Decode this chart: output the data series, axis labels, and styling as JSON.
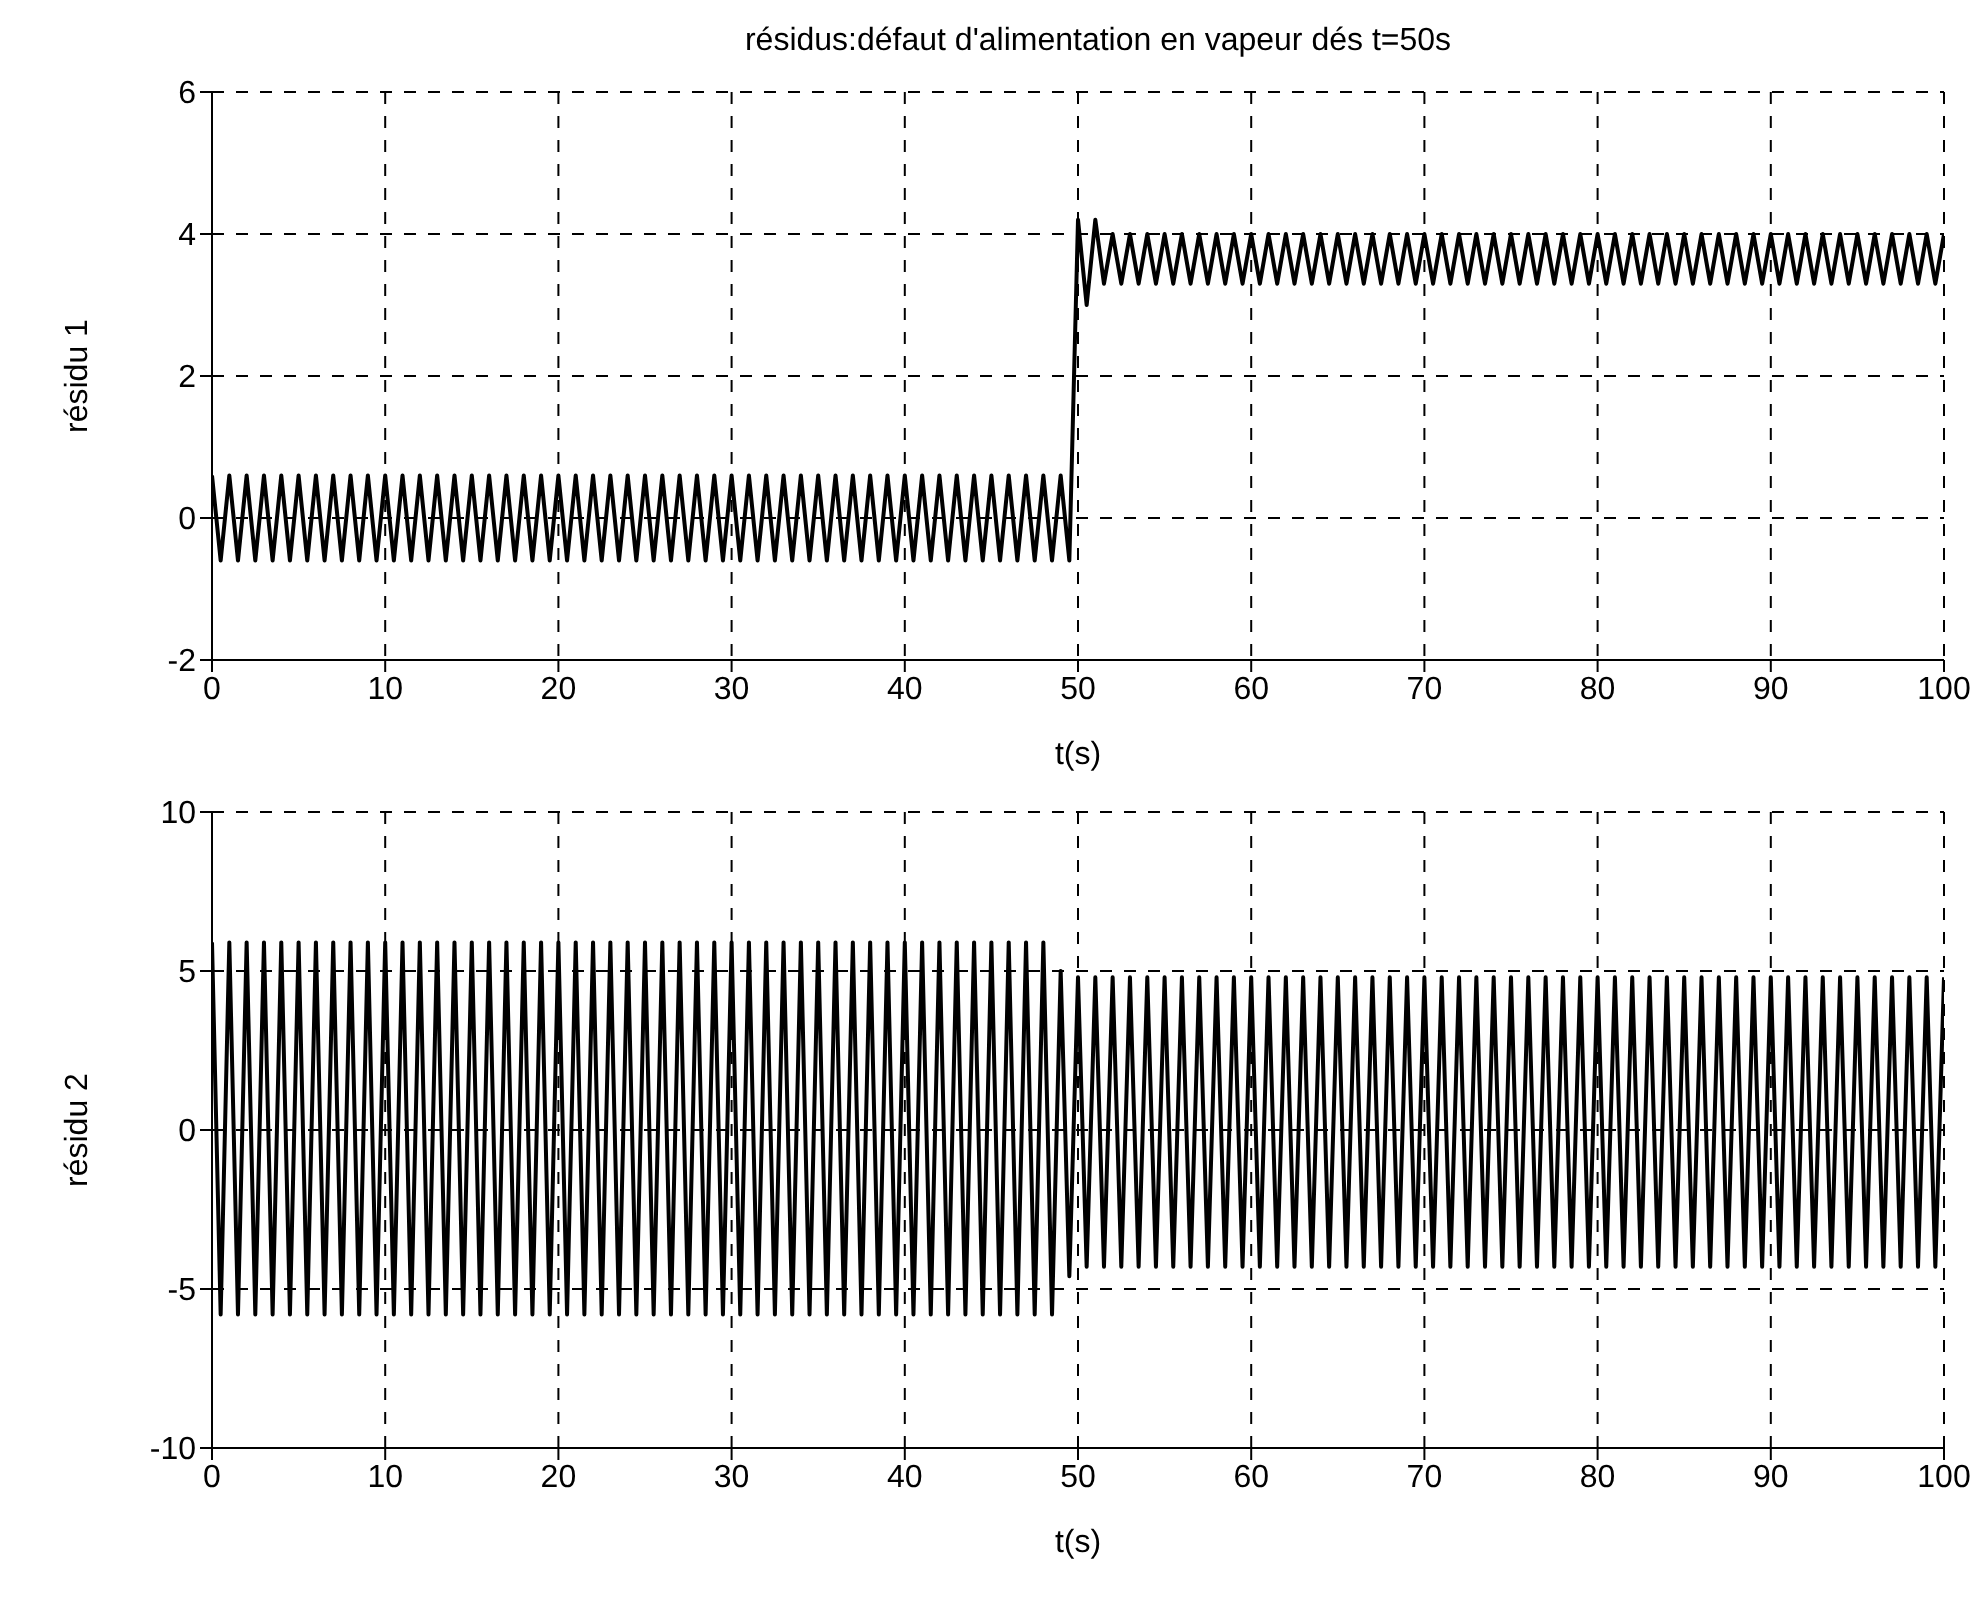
{
  "chart_data": [
    {
      "type": "line",
      "title": "résidus:défaut d'alimentation en vapeur dés t=50s",
      "xlabel": "t(s)",
      "ylabel": "résidu 1",
      "xlim": [
        0,
        100
      ],
      "xticks": [
        0,
        10,
        20,
        30,
        40,
        50,
        60,
        70,
        80,
        90,
        100
      ],
      "ylim": [
        -2,
        6
      ],
      "yticks": [
        -2,
        0,
        2,
        4,
        6
      ],
      "grid": true,
      "x": [
        0,
        0.5,
        1,
        1.5,
        2,
        2.5,
        3,
        3.5,
        4,
        4.5,
        5,
        5.5,
        6,
        6.5,
        7,
        7.5,
        8,
        8.5,
        9,
        9.5,
        10,
        10.5,
        11,
        11.5,
        12,
        12.5,
        13,
        13.5,
        14,
        14.5,
        15,
        15.5,
        16,
        16.5,
        17,
        17.5,
        18,
        18.5,
        19,
        19.5,
        20,
        20.5,
        21,
        21.5,
        22,
        22.5,
        23,
        23.5,
        24,
        24.5,
        25,
        25.5,
        26,
        26.5,
        27,
        27.5,
        28,
        28.5,
        29,
        29.5,
        30,
        30.5,
        31,
        31.5,
        32,
        32.5,
        33,
        33.5,
        34,
        34.5,
        35,
        35.5,
        36,
        36.5,
        37,
        37.5,
        38,
        38.5,
        39,
        39.5,
        40,
        40.5,
        41,
        41.5,
        42,
        42.5,
        43,
        43.5,
        44,
        44.5,
        45,
        45.5,
        46,
        46.5,
        47,
        47.5,
        48,
        48.5,
        49,
        49.5,
        50,
        50.5,
        51,
        51.5,
        52,
        52.5,
        53,
        53.5,
        54,
        54.5,
        55,
        55.5,
        56,
        56.5,
        57,
        57.5,
        58,
        58.5,
        59,
        59.5,
        60,
        60.5,
        61,
        61.5,
        62,
        62.5,
        63,
        63.5,
        64,
        64.5,
        65,
        65.5,
        66,
        66.5,
        67,
        67.5,
        68,
        68.5,
        69,
        69.5,
        70,
        70.5,
        71,
        71.5,
        72,
        72.5,
        73,
        73.5,
        74,
        74.5,
        75,
        75.5,
        76,
        76.5,
        77,
        77.5,
        78,
        78.5,
        79,
        79.5,
        80,
        80.5,
        81,
        81.5,
        82,
        82.5,
        83,
        83.5,
        84,
        84.5,
        85,
        85.5,
        86,
        86.5,
        87,
        87.5,
        88,
        88.5,
        89,
        89.5,
        90,
        90.5,
        91,
        91.5,
        92,
        92.5,
        93,
        93.5,
        94,
        94.5,
        95,
        95.5,
        96,
        96.5,
        97,
        97.5,
        98,
        98.5,
        99,
        99.5,
        100
      ],
      "series": [
        {
          "color": "#000000",
          "values": [
            0.6,
            -0.6,
            0.6,
            -0.6,
            0.6,
            -0.6,
            0.6,
            -0.6,
            0.6,
            -0.6,
            0.6,
            -0.6,
            0.6,
            -0.6,
            0.6,
            -0.6,
            0.6,
            -0.6,
            0.6,
            -0.6,
            0.6,
            -0.6,
            0.6,
            -0.6,
            0.6,
            -0.6,
            0.6,
            -0.6,
            0.6,
            -0.6,
            0.6,
            -0.6,
            0.6,
            -0.6,
            0.6,
            -0.6,
            0.6,
            -0.6,
            0.6,
            -0.6,
            0.6,
            -0.6,
            0.6,
            -0.6,
            0.6,
            -0.6,
            0.6,
            -0.6,
            0.6,
            -0.6,
            0.6,
            -0.6,
            0.6,
            -0.6,
            0.6,
            -0.6,
            0.6,
            -0.6,
            0.6,
            -0.6,
            0.6,
            -0.6,
            0.6,
            -0.6,
            0.6,
            -0.6,
            0.6,
            -0.6,
            0.6,
            -0.6,
            0.6,
            -0.6,
            0.6,
            -0.6,
            0.6,
            -0.6,
            0.6,
            -0.6,
            0.6,
            -0.6,
            0.6,
            -0.6,
            0.6,
            -0.6,
            0.6,
            -0.6,
            0.6,
            -0.6,
            0.6,
            -0.6,
            0.6,
            -0.6,
            0.6,
            -0.6,
            0.6,
            -0.6,
            0.6,
            -0.6,
            0.6,
            -0.6,
            4.2,
            3.0,
            4.2,
            3.3,
            4.0,
            3.3,
            4.0,
            3.3,
            4.0,
            3.3,
            4.0,
            3.3,
            4.0,
            3.3,
            4.0,
            3.3,
            4.0,
            3.3,
            4.0,
            3.3,
            4.0,
            3.3,
            4.0,
            3.3,
            4.0,
            3.3,
            4.0,
            3.3,
            4.0,
            3.3,
            4.0,
            3.3,
            4.0,
            3.3,
            4.0,
            3.3,
            4.0,
            3.3,
            4.0,
            3.3,
            4.0,
            3.3,
            4.0,
            3.3,
            4.0,
            3.3,
            4.0,
            3.3,
            4.0,
            3.3,
            4.0,
            3.3,
            4.0,
            3.3,
            4.0,
            3.3,
            4.0,
            3.3,
            4.0,
            3.3,
            4.0,
            3.3,
            4.0,
            3.3,
            4.0,
            3.3,
            4.0,
            3.3,
            4.0,
            3.3,
            4.0,
            3.3,
            4.0,
            3.3,
            4.0,
            3.3,
            4.0,
            3.3,
            4.0,
            3.3,
            4.0,
            3.3,
            4.0,
            3.3,
            4.0,
            3.3,
            4.0,
            3.3,
            4.0,
            3.3,
            4.0,
            3.3,
            4.0,
            3.3,
            4.0,
            3.3,
            4.0,
            3.3,
            4.0,
            3.3,
            4.0
          ]
        }
      ]
    },
    {
      "type": "line",
      "xlabel": "t(s)",
      "ylabel": "résidu 2",
      "xlim": [
        0,
        100
      ],
      "xticks": [
        0,
        10,
        20,
        30,
        40,
        50,
        60,
        70,
        80,
        90,
        100
      ],
      "ylim": [
        -10,
        10
      ],
      "yticks": [
        -10,
        -5,
        0,
        5,
        10
      ],
      "grid": true,
      "x": [
        0,
        0.5,
        1,
        1.5,
        2,
        2.5,
        3,
        3.5,
        4,
        4.5,
        5,
        5.5,
        6,
        6.5,
        7,
        7.5,
        8,
        8.5,
        9,
        9.5,
        10,
        10.5,
        11,
        11.5,
        12,
        12.5,
        13,
        13.5,
        14,
        14.5,
        15,
        15.5,
        16,
        16.5,
        17,
        17.5,
        18,
        18.5,
        19,
        19.5,
        20,
        20.5,
        21,
        21.5,
        22,
        22.5,
        23,
        23.5,
        24,
        24.5,
        25,
        25.5,
        26,
        26.5,
        27,
        27.5,
        28,
        28.5,
        29,
        29.5,
        30,
        30.5,
        31,
        31.5,
        32,
        32.5,
        33,
        33.5,
        34,
        34.5,
        35,
        35.5,
        36,
        36.5,
        37,
        37.5,
        38,
        38.5,
        39,
        39.5,
        40,
        40.5,
        41,
        41.5,
        42,
        42.5,
        43,
        43.5,
        44,
        44.5,
        45,
        45.5,
        46,
        46.5,
        47,
        47.5,
        48,
        48.5,
        49,
        49.5,
        50,
        50.5,
        51,
        51.5,
        52,
        52.5,
        53,
        53.5,
        54,
        54.5,
        55,
        55.5,
        56,
        56.5,
        57,
        57.5,
        58,
        58.5,
        59,
        59.5,
        60,
        60.5,
        61,
        61.5,
        62,
        62.5,
        63,
        63.5,
        64,
        64.5,
        65,
        65.5,
        66,
        66.5,
        67,
        67.5,
        68,
        68.5,
        69,
        69.5,
        70,
        70.5,
        71,
        71.5,
        72,
        72.5,
        73,
        73.5,
        74,
        74.5,
        75,
        75.5,
        76,
        76.5,
        77,
        77.5,
        78,
        78.5,
        79,
        79.5,
        80,
        80.5,
        81,
        81.5,
        82,
        82.5,
        83,
        83.5,
        84,
        84.5,
        85,
        85.5,
        86,
        86.5,
        87,
        87.5,
        88,
        88.5,
        89,
        89.5,
        90,
        90.5,
        91,
        91.5,
        92,
        92.5,
        93,
        93.5,
        94,
        94.5,
        95,
        95.5,
        96,
        96.5,
        97,
        97.5,
        98,
        98.5,
        99,
        99.5,
        100
      ],
      "series": [
        {
          "color": "#000000",
          "values": [
            5.9,
            -5.8,
            5.9,
            -5.8,
            5.9,
            -5.8,
            5.9,
            -5.8,
            5.9,
            -5.8,
            5.9,
            -5.8,
            5.9,
            -5.8,
            5.9,
            -5.8,
            5.9,
            -5.8,
            5.9,
            -5.8,
            5.9,
            -5.8,
            5.9,
            -5.8,
            5.9,
            -5.8,
            5.9,
            -5.8,
            5.9,
            -5.8,
            5.9,
            -5.8,
            5.9,
            -5.8,
            5.9,
            -5.8,
            5.9,
            -5.8,
            5.9,
            -5.8,
            5.9,
            -5.8,
            5.9,
            -5.8,
            5.9,
            -5.8,
            5.9,
            -5.8,
            5.9,
            -5.8,
            5.9,
            -5.8,
            5.9,
            -5.8,
            5.9,
            -5.8,
            5.9,
            -5.8,
            5.9,
            -5.8,
            5.9,
            -5.8,
            5.9,
            -5.8,
            5.9,
            -5.8,
            5.9,
            -5.8,
            5.9,
            -5.8,
            5.9,
            -5.8,
            5.9,
            -5.8,
            5.9,
            -5.8,
            5.9,
            -5.8,
            5.9,
            -5.8,
            5.9,
            -5.8,
            5.9,
            -5.8,
            5.9,
            -5.8,
            5.9,
            -5.8,
            5.9,
            -5.8,
            5.9,
            -5.8,
            5.9,
            -5.8,
            5.9,
            -5.8,
            5.9,
            -5.8,
            5.0,
            -4.6,
            4.8,
            -4.3,
            4.8,
            -4.3,
            4.8,
            -4.3,
            4.8,
            -4.3,
            4.8,
            -4.3,
            4.8,
            -4.3,
            4.8,
            -4.3,
            4.8,
            -4.3,
            4.8,
            -4.3,
            4.8,
            -4.3,
            4.8,
            -4.3,
            4.8,
            -4.3,
            4.8,
            -4.3,
            4.8,
            -4.3,
            4.8,
            -4.3,
            4.8,
            -4.3,
            4.8,
            -4.3,
            4.8,
            -4.3,
            4.8,
            -4.3,
            4.8,
            -4.3,
            4.8,
            -4.3,
            4.8,
            -4.3,
            4.8,
            -4.3,
            4.8,
            -4.3,
            4.8,
            -4.3,
            4.8,
            -4.3,
            4.8,
            -4.3,
            4.8,
            -4.3,
            4.8,
            -4.3,
            4.8,
            -4.3,
            4.8,
            -4.3,
            4.8,
            -4.3,
            4.8,
            -4.3,
            4.8,
            -4.3,
            4.8,
            -4.3,
            4.8,
            -4.3,
            4.8,
            -4.3,
            4.8,
            -4.3,
            4.8,
            -4.3,
            4.8,
            -4.3,
            4.8,
            -4.3,
            4.8,
            -4.3,
            4.8,
            -4.3,
            4.8,
            -4.3,
            4.8,
            -4.3,
            4.8,
            -4.3,
            4.8,
            -4.3,
            4.8,
            -4.3,
            4.8,
            -4.3,
            4.8,
            -4.3,
            4.8
          ]
        }
      ]
    }
  ]
}
